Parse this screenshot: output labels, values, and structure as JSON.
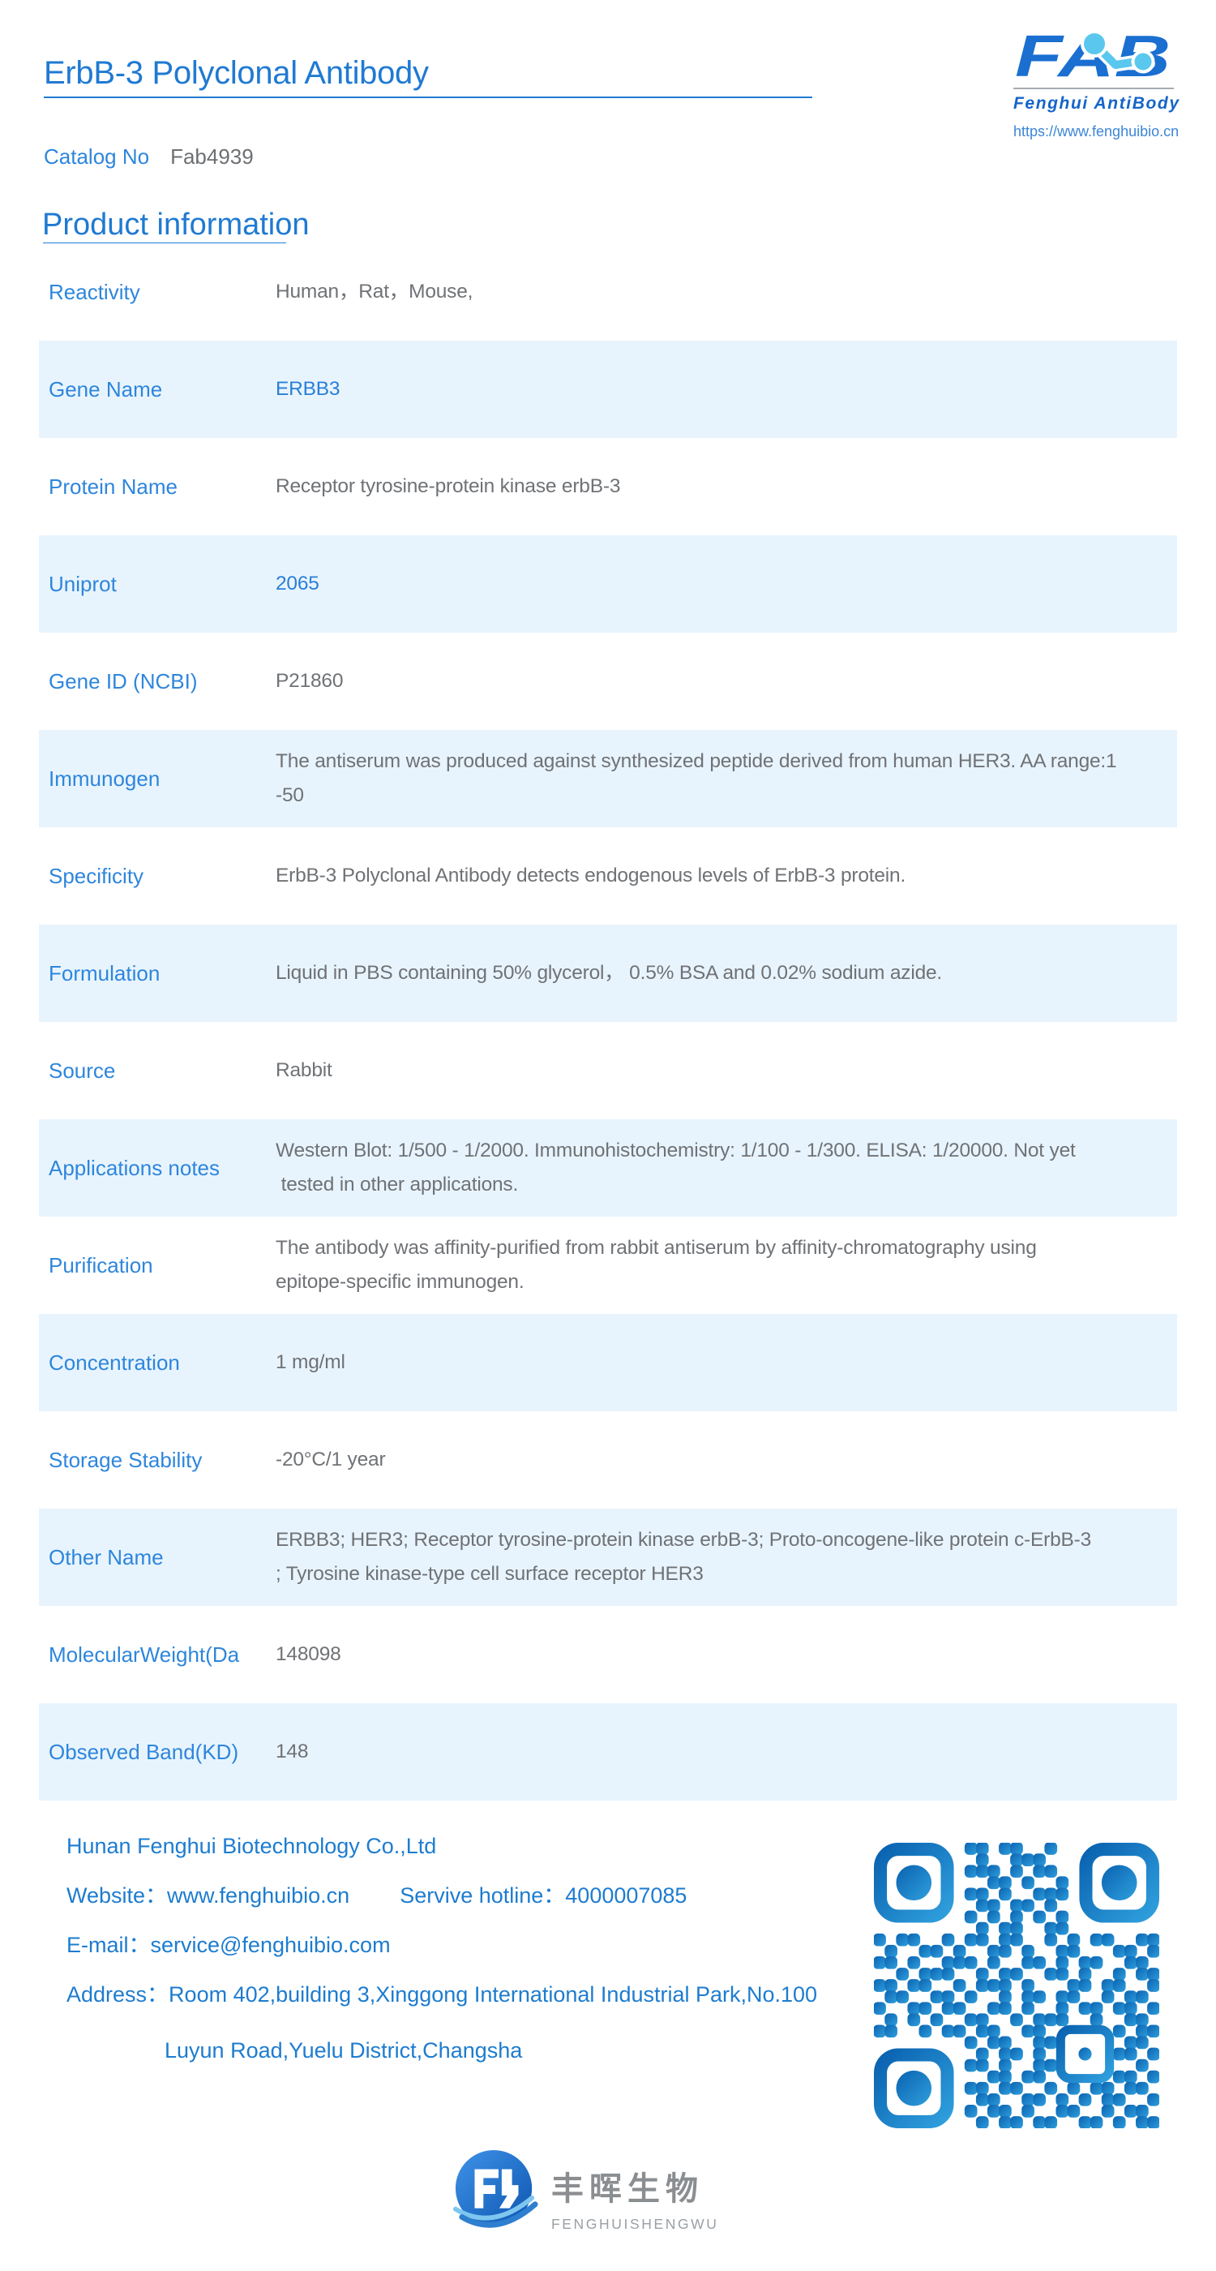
{
  "header": {
    "title": "ErbB-3 Polyclonal Antibody",
    "catalog_label": "Catalog No",
    "catalog_value": "Fab4939",
    "logo": {
      "brand": "FAB",
      "brand_sub": "Fenghui AntiBody",
      "url": "https://www.fenghuibio.cn"
    }
  },
  "section": {
    "product_information": "Product information"
  },
  "table": {
    "rows": [
      {
        "label": "Reactivity",
        "value": "Human，Rat，Mouse,"
      },
      {
        "label": "Gene Name",
        "value": "ERBB3"
      },
      {
        "label": "Protein Name",
        "value": "Receptor tyrosine-protein kinase erbB-3"
      },
      {
        "label": "Uniprot",
        "value": "2065"
      },
      {
        "label": "Gene ID (NCBI)",
        "value": "P21860"
      },
      {
        "label": "Immunogen",
        "value": "The antiserum was produced against synthesized peptide derived from human HER3. AA range:1\n-50"
      },
      {
        "label": "Specificity",
        "value": "ErbB-3 Polyclonal Antibody detects endogenous levels of ErbB-3 protein."
      },
      {
        "label": "Formulation",
        "value": "Liquid in PBS containing 50% glycerol， 0.5% BSA and 0.02% sodium azide."
      },
      {
        "label": "Source",
        "value": "Rabbit"
      },
      {
        "label": "Applications notes",
        "value": "Western Blot: 1/500 - 1/2000. Immunohistochemistry: 1/100 - 1/300. ELISA: 1/20000. Not yet\n tested in other applications."
      },
      {
        "label": "Purification",
        "value": "The antibody was affinity-purified from rabbit antiserum by affinity-chromatography using\nepitope-specific immunogen."
      },
      {
        "label": "Concentration",
        "value": "1 mg/ml"
      },
      {
        "label": "Storage Stability",
        "value": "-20°C/1 year"
      },
      {
        "label": "Other Name",
        "value": "ERBB3; HER3; Receptor tyrosine-protein kinase erbB-3; Proto-oncogene-like protein c-ErbB-3\n; Tyrosine kinase-type cell surface receptor HER3"
      },
      {
        "label": "MolecularWeight(Da",
        "value": "148098"
      },
      {
        "label": "Observed Band(KD)",
        "value": "148"
      }
    ]
  },
  "footer": {
    "company": "Hunan Fenghui Biotechnology Co.,Ltd",
    "website": "Website：www.fenghuibio.cn",
    "hotline": "Servive hotline：4000007085",
    "email": "E-mail：service@fenghuibio.com",
    "address_line1": "Address：Room 402,building 3,Xinggong International Industrial Park,No.100",
    "address_line2": "Luyun Road,Yuelu District,Changsha"
  },
  "bottom_logo": {
    "cn": "丰晖生物",
    "en": "FENGHUISHENGWU"
  },
  "colors": {
    "accent_blue": "#1f7ad2",
    "label_blue": "#2e86dc",
    "link_blue": "#2a7fd6",
    "value_gray": "#6f7276",
    "row_highlight": "#e8f4fd",
    "footer_blue": "#1d7ccf",
    "logo_blue": "#1a6fd0",
    "logo_cyan": "#5ac8ee",
    "qr_dark": "#0a62b0",
    "qr_light": "#2f9fdd"
  },
  "qr": {
    "module_size": 14,
    "matrix": [
      "0000000011011001000000000",
      "0000000001001110000000000",
      "0000000011101011000000000",
      "0000000000110100100000000",
      "0000000011010011100000000",
      "0000000001101101000000000",
      "0000000010101010100000000",
      "0000000001011001100000000",
      "1011001011011001010110011",
      "0100110100110100110001101",
      "1101001110100110101100110",
      "0010111001011001101001011",
      "1101100101110100011011001",
      "0110011010010110110010110",
      "1001101100110100101101101",
      "0101010011001011100100110",
      "1100101101100110000001011",
      "0000000010110011000000110",
      "0000000001011010000001101",
      "0000000011010011000000010",
      "0000000000110110000001101",
      "0000000011011001010110110",
      "0000000001100110101011001",
      "0000000010110100110010110",
      "0000000001011011001101011"
    ]
  }
}
